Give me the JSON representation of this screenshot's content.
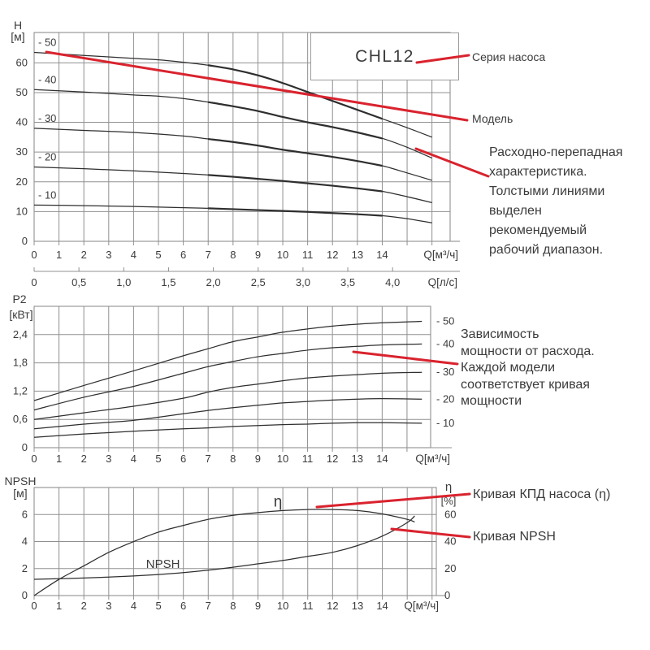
{
  "series_box": {
    "label": "CHL12"
  },
  "annotations": {
    "series_label": "Серия насоса",
    "model_label": "Модель",
    "flow_head_note": "Расходно-перепадная\nхарактеристика.\nТолстыми линиями\nвыделен\nрекомендуемый\nрабочий диапазон.",
    "power_note": "Зависимость\nмощности от расхода.\nКаждой модели\nсоответствует кривая\nмощности",
    "efficiency_label": "Кривая КПД насоса (η)",
    "npsh_label": "Кривая NPSH"
  },
  "colors": {
    "accent_red": "#d9232e",
    "curve": "#2e2e2e",
    "grid": "#909090",
    "text": "#3b3b3b",
    "background": "#ffffff"
  },
  "chart_data": [
    {
      "id": "head",
      "type": "line",
      "xlabel": "Q[м³/ч]",
      "xlabel2": "Q[л/с]",
      "y_title_lines": [
        "H",
        "[м]"
      ],
      "xlim": [
        0,
        16.73
      ],
      "ylim": [
        0,
        70.2
      ],
      "x_ticks": {
        "values": [
          0,
          1,
          2,
          3,
          4,
          5,
          6,
          7,
          8,
          9,
          10,
          11,
          12,
          13,
          14
        ],
        "labels": [
          "0",
          "1",
          "2",
          "3",
          "4",
          "5",
          "6",
          "7",
          "8",
          "9",
          "10",
          "11",
          "12",
          "13",
          "14"
        ]
      },
      "x2_ticks": {
        "values": [
          0,
          0.5,
          1,
          1.5,
          2,
          2.5,
          3,
          3.5,
          4
        ],
        "labels": [
          "0",
          "0,5",
          "1,0",
          "1,5",
          "2,0",
          "2,5",
          "3,0",
          "3,5",
          "4,0"
        ]
      },
      "y_ticks": {
        "values": [
          0,
          10,
          20,
          30,
          40,
          50,
          60
        ],
        "labels": [
          "0",
          "10",
          "20",
          "30",
          "40",
          "50",
          "60"
        ]
      },
      "grid_y": [
        10,
        20,
        30,
        40,
        50,
        60
      ],
      "recommended_range": [
        7,
        14
      ],
      "series": [
        {
          "name": "- 50",
          "points": [
            [
              0,
              63.5
            ],
            [
              2,
              62.5
            ],
            [
              4,
              61.5
            ],
            [
              5,
              61
            ],
            [
              6,
              60.2
            ],
            [
              7,
              59.2
            ],
            [
              8,
              57.8
            ],
            [
              9,
              55.8
            ],
            [
              10,
              53.2
            ],
            [
              11,
              50.2
            ],
            [
              12,
              47.2
            ],
            [
              13,
              44.2
            ],
            [
              14,
              41.2
            ],
            [
              15,
              38.2
            ],
            [
              16,
              35
            ]
          ]
        },
        {
          "name": "- 40",
          "points": [
            [
              0,
              51
            ],
            [
              2,
              50.2
            ],
            [
              4,
              49.2
            ],
            [
              5,
              48.8
            ],
            [
              6,
              48
            ],
            [
              7,
              46.8
            ],
            [
              8,
              45.4
            ],
            [
              9,
              43.8
            ],
            [
              10,
              41.8
            ],
            [
              11,
              40
            ],
            [
              12,
              38.4
            ],
            [
              13,
              36.6
            ],
            [
              14,
              34.6
            ],
            [
              15,
              31.6
            ],
            [
              16,
              28
            ]
          ]
        },
        {
          "name": "- 30",
          "points": [
            [
              0,
              38
            ],
            [
              2,
              37.3
            ],
            [
              4,
              36.6
            ],
            [
              6,
              35.4
            ],
            [
              7,
              34.4
            ],
            [
              8,
              33.4
            ],
            [
              9,
              32.2
            ],
            [
              10,
              30.8
            ],
            [
              11,
              29.6
            ],
            [
              12,
              28.4
            ],
            [
              13,
              27
            ],
            [
              14,
              25.4
            ],
            [
              15,
              23
            ],
            [
              16,
              20.5
            ]
          ]
        },
        {
          "name": "- 20",
          "points": [
            [
              0,
              25
            ],
            [
              2,
              24.4
            ],
            [
              4,
              23.7
            ],
            [
              6,
              22.8
            ],
            [
              7,
              22.3
            ],
            [
              8,
              21.7
            ],
            [
              9,
              21
            ],
            [
              10,
              20.3
            ],
            [
              11,
              19.5
            ],
            [
              12,
              18.7
            ],
            [
              13,
              17.8
            ],
            [
              14,
              16.8
            ],
            [
              15,
              15
            ],
            [
              16,
              13
            ]
          ]
        },
        {
          "name": "- 10",
          "points": [
            [
              0,
              12.2
            ],
            [
              2,
              12
            ],
            [
              4,
              11.7
            ],
            [
              6,
              11.3
            ],
            [
              7,
              11.1
            ],
            [
              8,
              10.8
            ],
            [
              9,
              10.5
            ],
            [
              10,
              10.2
            ],
            [
              11,
              9.9
            ],
            [
              12,
              9.5
            ],
            [
              13,
              9.1
            ],
            [
              14,
              8.6
            ],
            [
              15,
              7.6
            ],
            [
              16,
              6.2
            ]
          ]
        }
      ]
    },
    {
      "id": "power",
      "type": "line",
      "xlabel": "Q[м³/ч]",
      "y_title_lines": [
        "P2",
        "[кВт]"
      ],
      "xlim": [
        0,
        15.95
      ],
      "ylim": [
        0,
        3.0
      ],
      "x_ticks": {
        "values": [
          0,
          1,
          2,
          3,
          4,
          5,
          6,
          7,
          8,
          9,
          10,
          11,
          12,
          13,
          14
        ],
        "labels": [
          "0",
          "1",
          "2",
          "3",
          "4",
          "5",
          "6",
          "7",
          "8",
          "9",
          "10",
          "11",
          "12",
          "13",
          "14"
        ]
      },
      "y_ticks": {
        "values": [
          0,
          0.6,
          1.2,
          1.8,
          2.4
        ],
        "labels": [
          "0",
          "0,6",
          "1,2",
          "1,8",
          "2,4"
        ]
      },
      "grid_y": [
        0.6,
        1.2,
        1.8,
        2.4
      ],
      "series": [
        {
          "name": "- 50",
          "points": [
            [
              0,
              1.0
            ],
            [
              2,
              1.32
            ],
            [
              4,
              1.63
            ],
            [
              6,
              1.95
            ],
            [
              7,
              2.1
            ],
            [
              8,
              2.25
            ],
            [
              9,
              2.35
            ],
            [
              10,
              2.45
            ],
            [
              11,
              2.52
            ],
            [
              12,
              2.58
            ],
            [
              13,
              2.62
            ],
            [
              14,
              2.65
            ],
            [
              15.6,
              2.68
            ]
          ]
        },
        {
          "name": "- 40",
          "points": [
            [
              0,
              0.8
            ],
            [
              2,
              1.07
            ],
            [
              4,
              1.3
            ],
            [
              6,
              1.58
            ],
            [
              7,
              1.72
            ],
            [
              8,
              1.83
            ],
            [
              9,
              1.93
            ],
            [
              10,
              2.0
            ],
            [
              11,
              2.07
            ],
            [
              12,
              2.12
            ],
            [
              13,
              2.15
            ],
            [
              14,
              2.18
            ],
            [
              15.6,
              2.2
            ]
          ]
        },
        {
          "name": "- 30",
          "points": [
            [
              0,
              0.6
            ],
            [
              2,
              0.74
            ],
            [
              4,
              0.88
            ],
            [
              6,
              1.05
            ],
            [
              7,
              1.18
            ],
            [
              8,
              1.28
            ],
            [
              9,
              1.35
            ],
            [
              10,
              1.42
            ],
            [
              11,
              1.48
            ],
            [
              12,
              1.52
            ],
            [
              13,
              1.55
            ],
            [
              14,
              1.58
            ],
            [
              15.6,
              1.6
            ]
          ]
        },
        {
          "name": "- 20",
          "points": [
            [
              0,
              0.4
            ],
            [
              2,
              0.5
            ],
            [
              4,
              0.58
            ],
            [
              6,
              0.72
            ],
            [
              7,
              0.79
            ],
            [
              8,
              0.85
            ],
            [
              9,
              0.9
            ],
            [
              10,
              0.95
            ],
            [
              11,
              0.98
            ],
            [
              12,
              1.01
            ],
            [
              13,
              1.03
            ],
            [
              14,
              1.04
            ],
            [
              15.6,
              1.03
            ]
          ]
        },
        {
          "name": "- 10",
          "points": [
            [
              0,
              0.22
            ],
            [
              2,
              0.29
            ],
            [
              4,
              0.35
            ],
            [
              6,
              0.4
            ],
            [
              7,
              0.42
            ],
            [
              8,
              0.45
            ],
            [
              9,
              0.47
            ],
            [
              10,
              0.49
            ],
            [
              11,
              0.5
            ],
            [
              12,
              0.52
            ],
            [
              13,
              0.53
            ],
            [
              14,
              0.53
            ],
            [
              15.6,
              0.52
            ]
          ]
        }
      ]
    },
    {
      "id": "npsh",
      "type": "line",
      "xlabel": "Q[м³/ч]",
      "y_title_lines": [
        "NPSH",
        "[м]"
      ],
      "y2_title_lines": [
        "η",
        "[%]"
      ],
      "xlim": [
        0,
        16.17
      ],
      "ylim": [
        0,
        8
      ],
      "y2lim": [
        0,
        80.1
      ],
      "x_ticks": {
        "values": [
          0,
          1,
          2,
          3,
          4,
          5,
          6,
          7,
          8,
          9,
          10,
          11,
          12,
          13,
          14
        ],
        "labels": [
          "0",
          "1",
          "2",
          "3",
          "4",
          "5",
          "6",
          "7",
          "8",
          "9",
          "10",
          "11",
          "12",
          "13",
          "14"
        ]
      },
      "y_ticks": {
        "values": [
          0,
          2,
          4,
          6
        ],
        "labels": [
          "0",
          "2",
          "4",
          "6"
        ]
      },
      "y2_ticks": {
        "values": [
          0,
          20,
          40,
          60
        ],
        "labels": [
          "0",
          "20",
          "40",
          "60"
        ]
      },
      "grid_y": [
        2,
        4,
        6
      ],
      "series": [
        {
          "name": "η",
          "axis": "y2",
          "label_at": [
            9.8,
            66
          ],
          "label_size": 19,
          "points": [
            [
              0,
              0
            ],
            [
              1,
              12
            ],
            [
              2,
              22
            ],
            [
              3,
              32
            ],
            [
              4,
              40
            ],
            [
              5,
              47
            ],
            [
              6,
              52
            ],
            [
              7,
              56.5
            ],
            [
              8,
              59.5
            ],
            [
              9,
              61.5
            ],
            [
              10,
              63
            ],
            [
              11,
              63.8
            ],
            [
              12,
              63.8
            ],
            [
              13,
              63
            ],
            [
              14,
              60.5
            ],
            [
              15,
              56.5
            ],
            [
              15.3,
              54.5
            ]
          ]
        },
        {
          "name": "NPSH",
          "axis": "y",
          "label_at": [
            4.5,
            2.05
          ],
          "label_size": 15,
          "points": [
            [
              0,
              1.2
            ],
            [
              1,
              1.25
            ],
            [
              2,
              1.3
            ],
            [
              3,
              1.37
            ],
            [
              4,
              1.45
            ],
            [
              5,
              1.56
            ],
            [
              6,
              1.7
            ],
            [
              7,
              1.88
            ],
            [
              8,
              2.1
            ],
            [
              9,
              2.35
            ],
            [
              10,
              2.6
            ],
            [
              11,
              2.9
            ],
            [
              12,
              3.2
            ],
            [
              13,
              3.7
            ],
            [
              14,
              4.4
            ],
            [
              15,
              5.4
            ],
            [
              15.3,
              5.9
            ]
          ]
        }
      ]
    }
  ]
}
